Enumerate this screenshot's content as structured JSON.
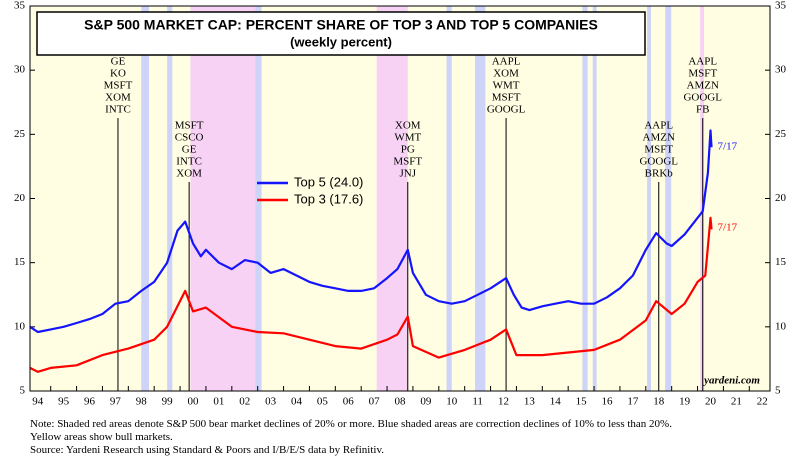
{
  "chart_data": {
    "type": "line",
    "title": "S&P 500 MARKET CAP: PERCENT SHARE OF TOP 3 AND TOP 5 COMPANIES",
    "subtitle": "(weekly percent)",
    "xlim": [
      1994.2,
      2022.8
    ],
    "ylim": [
      5,
      35
    ],
    "yticks": [
      5,
      10,
      15,
      20,
      25,
      30,
      35
    ],
    "xticks": [
      {
        "value": 1994,
        "label": "94"
      },
      {
        "value": 1995,
        "label": "95"
      },
      {
        "value": 1996,
        "label": "96"
      },
      {
        "value": 1997,
        "label": "97"
      },
      {
        "value": 1998,
        "label": "98"
      },
      {
        "value": 1999,
        "label": "99"
      },
      {
        "value": 2000,
        "label": "00"
      },
      {
        "value": 2001,
        "label": "01"
      },
      {
        "value": 2002,
        "label": "02"
      },
      {
        "value": 2003,
        "label": "03"
      },
      {
        "value": 2004,
        "label": "04"
      },
      {
        "value": 2005,
        "label": "05"
      },
      {
        "value": 2006,
        "label": "06"
      },
      {
        "value": 2007,
        "label": "07"
      },
      {
        "value": 2008,
        "label": "08"
      },
      {
        "value": 2009,
        "label": "09"
      },
      {
        "value": 2010,
        "label": "10"
      },
      {
        "value": 2011,
        "label": "11"
      },
      {
        "value": 2012,
        "label": "12"
      },
      {
        "value": 2013,
        "label": "13"
      },
      {
        "value": 2014,
        "label": "14"
      },
      {
        "value": 2015,
        "label": "15"
      },
      {
        "value": 2016,
        "label": "16"
      },
      {
        "value": 2017,
        "label": "17"
      },
      {
        "value": 2018,
        "label": "18"
      },
      {
        "value": 2019,
        "label": "19"
      },
      {
        "value": 2020,
        "label": "20"
      },
      {
        "value": 2021,
        "label": "21"
      },
      {
        "value": 2022,
        "label": "22"
      }
    ],
    "bear_markets": [
      [
        2000.4,
        2002.9
      ],
      [
        2007.6,
        2008.8
      ],
      [
        2020.1,
        2020.25
      ]
    ],
    "corrections": [
      [
        1998.5,
        1998.8
      ],
      [
        1999.5,
        1999.7
      ],
      [
        2002.9,
        2003.15
      ],
      [
        2010.3,
        2010.5
      ],
      [
        2011.4,
        2011.8
      ],
      [
        2015.55,
        2015.75
      ],
      [
        2015.95,
        2016.1
      ],
      [
        2018.05,
        2018.2
      ],
      [
        2018.75,
        2018.98
      ]
    ],
    "series": [
      {
        "name": "Top 5 (24.0)",
        "color": "#1414ff",
        "end_label": "7/17",
        "x": [
          1994.2,
          1994.5,
          1995.0,
          1995.5,
          1996.0,
          1996.5,
          1997.0,
          1997.5,
          1998.0,
          1998.5,
          1999.0,
          1999.5,
          1999.9,
          2000.2,
          2000.5,
          2000.8,
          2001.0,
          2001.5,
          2002.0,
          2002.5,
          2003.0,
          2003.5,
          2004.0,
          2004.5,
          2005.0,
          2005.5,
          2006.0,
          2006.5,
          2007.0,
          2007.5,
          2008.0,
          2008.4,
          2008.8,
          2009.0,
          2009.5,
          2010.0,
          2010.5,
          2011.0,
          2011.5,
          2012.0,
          2012.6,
          2012.9,
          2013.2,
          2013.5,
          2014.0,
          2014.5,
          2015.0,
          2015.5,
          2016.0,
          2016.5,
          2017.0,
          2017.5,
          2018.0,
          2018.4,
          2018.8,
          2019.0,
          2019.5,
          2020.0,
          2020.2,
          2020.4,
          2020.5,
          2020.54
        ],
        "values": [
          10.0,
          9.6,
          9.8,
          10.0,
          10.3,
          10.6,
          11.0,
          11.8,
          12.0,
          12.8,
          13.5,
          15.0,
          17.5,
          18.2,
          16.5,
          15.5,
          16.0,
          15.0,
          14.5,
          15.2,
          15.0,
          14.2,
          14.5,
          14.0,
          13.5,
          13.2,
          13.0,
          12.8,
          12.8,
          13.0,
          13.8,
          14.5,
          16.0,
          14.2,
          12.5,
          12.0,
          11.8,
          12.0,
          12.5,
          13.0,
          13.8,
          12.5,
          11.5,
          11.3,
          11.6,
          11.8,
          12.0,
          11.8,
          11.8,
          12.3,
          13.0,
          14.0,
          16.0,
          17.3,
          16.5,
          16.3,
          17.2,
          18.5,
          19.0,
          22.0,
          25.3,
          24.0
        ]
      },
      {
        "name": "Top 3 (17.6)",
        "color": "#ff0000",
        "end_label": "7/17",
        "x": [
          1994.2,
          1994.5,
          1995.0,
          1996.0,
          1997.0,
          1998.0,
          1999.0,
          1999.5,
          2000.2,
          2000.5,
          2001.0,
          2002.0,
          2003.0,
          2004.0,
          2005.0,
          2006.0,
          2007.0,
          2008.0,
          2008.4,
          2008.8,
          2009.0,
          2010.0,
          2011.0,
          2012.0,
          2012.6,
          2013.0,
          2014.0,
          2015.0,
          2016.0,
          2017.0,
          2018.0,
          2018.4,
          2019.0,
          2019.5,
          2020.0,
          2020.3,
          2020.5,
          2020.54
        ],
        "values": [
          6.8,
          6.5,
          6.8,
          7.0,
          7.8,
          8.3,
          9.0,
          10.0,
          12.8,
          11.2,
          11.5,
          10.0,
          9.6,
          9.5,
          9.0,
          8.5,
          8.3,
          9.0,
          9.4,
          10.8,
          8.5,
          7.6,
          8.2,
          9.0,
          9.8,
          7.8,
          7.8,
          8.0,
          8.2,
          9.0,
          10.5,
          12.0,
          11.0,
          11.8,
          13.5,
          14.0,
          18.5,
          17.6
        ]
      }
    ],
    "annotations": [
      {
        "x": 1997.6,
        "lines": [
          "GE",
          "KO",
          "MSFT",
          "XOM",
          "INTC"
        ],
        "top": true
      },
      {
        "x": 2000.35,
        "lines": [
          "MSFT",
          "CSCO",
          "GE",
          "INTC",
          "XOM"
        ],
        "top": false
      },
      {
        "x": 2008.8,
        "lines": [
          "XOM",
          "WMT",
          "PG",
          "MSFT",
          "JNJ"
        ],
        "top": false
      },
      {
        "x": 2012.6,
        "lines": [
          "AAPL",
          "XOM",
          "WMT",
          "MSFT",
          "GOOGL"
        ],
        "top": true
      },
      {
        "x": 2018.5,
        "lines": [
          "AAPL",
          "AMZN",
          "MSFT",
          "GOOGL",
          "BRKb"
        ],
        "top": false
      },
      {
        "x": 2020.2,
        "lines": [
          "AAPL",
          "MSFT",
          "AMZN",
          "GOOGL",
          "FB"
        ],
        "top": true
      }
    ],
    "source_tag": "yardeni.com",
    "notes": [
      "Note: Shaded red areas denote S&P 500 bear market declines of 20% or more.  Blue shaded areas are correction declines of 10% to less than 20%.",
      "Yellow areas show bull markets.",
      "Source: Yardeni Research using Standard & Poors and I/B/E/S data by Refinitiv."
    ]
  }
}
